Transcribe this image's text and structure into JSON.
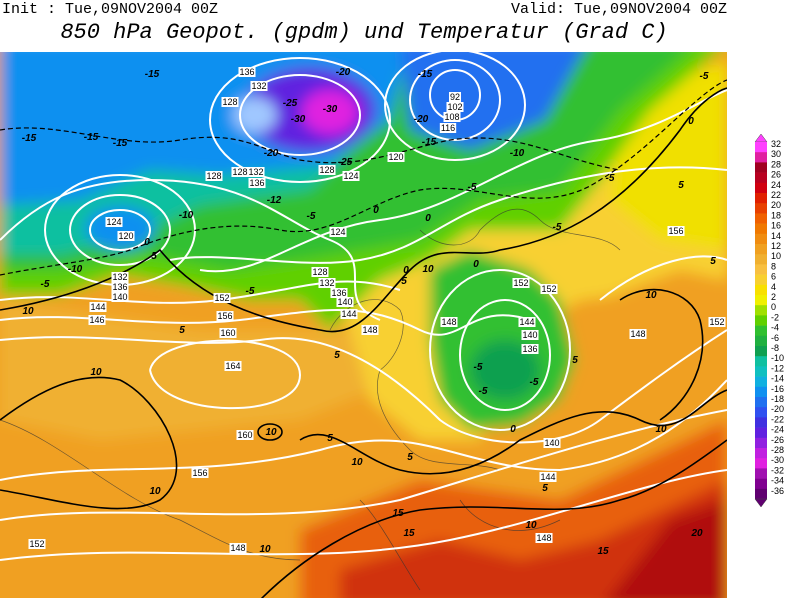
{
  "header": {
    "init": "Init : Tue,09NOV2004 00Z",
    "valid": "Valid: Tue,09NOV2004 00Z",
    "title": "850 hPa Geopot. (gpdm) und Temperatur (Grad C)"
  },
  "map": {
    "geopotential_labels": [
      "136",
      "132",
      "128",
      "128",
      "128",
      "132",
      "136",
      "128",
      "124",
      "120",
      "116",
      "124",
      "120",
      "132",
      "136",
      "140",
      "144",
      "146",
      "152",
      "156",
      "160",
      "164",
      "160",
      "156",
      "152",
      "148",
      "148",
      "144",
      "140",
      "136",
      "140",
      "144",
      "148",
      "148",
      "152",
      "152",
      "148",
      "152",
      "156",
      "124",
      "128",
      "132",
      "136",
      "140",
      "144",
      "92",
      "102",
      "108"
    ],
    "temperature_labels": [
      "-15",
      "-20",
      "-15",
      "-5",
      "-15",
      "-15",
      "-15",
      "-25",
      "-30",
      "-30",
      "-20",
      "-25",
      "-20",
      "-15",
      "-10",
      "-10",
      "-12",
      "-5",
      "0",
      "-5",
      "0",
      "-5",
      "0",
      "-5",
      "5",
      "5",
      "-10",
      "-5",
      "0",
      "5",
      "-5",
      "10",
      "5",
      "10",
      "5",
      "0",
      "5",
      "10",
      "0",
      "-5",
      "-5",
      "-5",
      "5",
      "0",
      "10",
      "10",
      "5",
      "10",
      "5",
      "10",
      "5",
      "10",
      "10",
      "15",
      "15",
      "15",
      "20",
      "10"
    ]
  },
  "colorbar": {
    "labels": [
      32,
      30,
      28,
      26,
      24,
      22,
      20,
      18,
      16,
      14,
      12,
      10,
      8,
      6,
      4,
      2,
      0,
      -2,
      -4,
      -6,
      -8,
      -10,
      -12,
      -14,
      -16,
      -18,
      -20,
      -22,
      -24,
      -26,
      -28,
      -30,
      -32,
      -34,
      -36
    ],
    "colors": [
      "#ff40ff",
      "#e020a0",
      "#a00020",
      "#b80020",
      "#d00010",
      "#e02000",
      "#e84000",
      "#f06000",
      "#f07800",
      "#f08c10",
      "#f0a020",
      "#f0b030",
      "#f8c040",
      "#f8d030",
      "#f8e000",
      "#f0f000",
      "#a0e000",
      "#60d000",
      "#30c030",
      "#20b040",
      "#10a050",
      "#10c0a0",
      "#10c0c0",
      "#10b0e0",
      "#1090f0",
      "#2070f0",
      "#3050f0",
      "#4030e0",
      "#6020e0",
      "#9020e0",
      "#c020e0",
      "#e020e0",
      "#a010b0",
      "#800090",
      "#600070"
    ]
  }
}
